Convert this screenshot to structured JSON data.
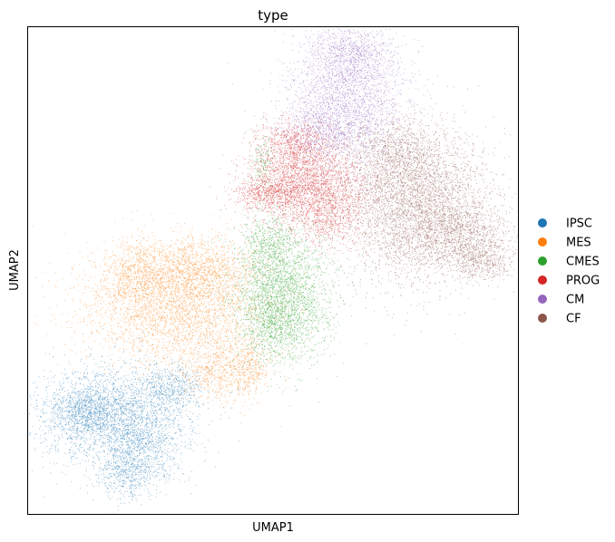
{
  "chart_data": {
    "type": "scatter",
    "title": "type",
    "xlabel": "UMAP1",
    "ylabel": "UMAP2",
    "xlim": [
      0,
      10
    ],
    "ylim": [
      0,
      10
    ],
    "grid": false,
    "legend_position": "right",
    "series": [
      {
        "name": "IPSC",
        "color": "#1f77b4",
        "clusters": [
          {
            "x": 1.8,
            "y": 2.0,
            "sx": 0.75,
            "sy": 0.55,
            "n": 2600
          },
          {
            "x": 1.1,
            "y": 2.1,
            "sx": 0.35,
            "sy": 0.25,
            "n": 700
          },
          {
            "x": 2.3,
            "y": 1.3,
            "sx": 0.35,
            "sy": 0.45,
            "n": 700
          },
          {
            "x": 2.9,
            "y": 2.6,
            "sx": 0.35,
            "sy": 0.25,
            "n": 500
          },
          {
            "x": 1.9,
            "y": 0.8,
            "sx": 0.25,
            "sy": 0.25,
            "n": 300
          }
        ]
      },
      {
        "name": "MES",
        "color": "#ff7f0e",
        "clusters": [
          {
            "x": 3.0,
            "y": 4.3,
            "sx": 0.95,
            "sy": 0.6,
            "n": 3200
          },
          {
            "x": 3.4,
            "y": 5.1,
            "sx": 0.6,
            "sy": 0.3,
            "n": 900
          },
          {
            "x": 2.2,
            "y": 4.9,
            "sx": 0.4,
            "sy": 0.35,
            "n": 600
          },
          {
            "x": 3.9,
            "y": 3.0,
            "sx": 0.45,
            "sy": 0.35,
            "n": 700
          },
          {
            "x": 4.5,
            "y": 3.0,
            "sx": 0.2,
            "sy": 0.3,
            "n": 250
          }
        ]
      },
      {
        "name": "CMES",
        "color": "#2ca02c",
        "clusters": [
          {
            "x": 5.2,
            "y": 4.5,
            "sx": 0.5,
            "sy": 0.7,
            "n": 2800
          },
          {
            "x": 4.9,
            "y": 5.6,
            "sx": 0.25,
            "sy": 0.3,
            "n": 400
          },
          {
            "x": 4.8,
            "y": 7.3,
            "sx": 0.12,
            "sy": 0.3,
            "n": 150
          },
          {
            "x": 4.9,
            "y": 4.0,
            "sx": 0.3,
            "sy": 0.35,
            "n": 400
          }
        ]
      },
      {
        "name": "PROG",
        "color": "#d62728",
        "clusters": [
          {
            "x": 5.7,
            "y": 6.8,
            "sx": 0.6,
            "sy": 0.45,
            "n": 2600
          },
          {
            "x": 4.9,
            "y": 6.6,
            "sx": 0.35,
            "sy": 0.15,
            "n": 500
          },
          {
            "x": 5.4,
            "y": 7.6,
            "sx": 0.4,
            "sy": 0.25,
            "n": 700
          },
          {
            "x": 6.1,
            "y": 6.1,
            "sx": 0.35,
            "sy": 0.3,
            "n": 500
          }
        ]
      },
      {
        "name": "CM",
        "color": "#9467bd",
        "clusters": [
          {
            "x": 6.5,
            "y": 8.5,
            "sx": 0.6,
            "sy": 0.7,
            "n": 2600
          },
          {
            "x": 6.6,
            "y": 9.5,
            "sx": 0.4,
            "sy": 0.3,
            "n": 700
          },
          {
            "x": 6.0,
            "y": 7.9,
            "sx": 0.4,
            "sy": 0.3,
            "n": 500
          }
        ]
      },
      {
        "name": "CF",
        "color": "#8c564b",
        "clusters": [
          {
            "x": 7.9,
            "y": 6.3,
            "sx": 0.75,
            "sy": 0.75,
            "n": 4200
          },
          {
            "x": 8.9,
            "y": 5.7,
            "sx": 0.5,
            "sy": 0.35,
            "n": 1000
          },
          {
            "x": 7.6,
            "y": 7.4,
            "sx": 0.5,
            "sy": 0.4,
            "n": 900
          },
          {
            "x": 9.3,
            "y": 5.2,
            "sx": 0.3,
            "sy": 0.2,
            "n": 400
          }
        ]
      }
    ]
  }
}
